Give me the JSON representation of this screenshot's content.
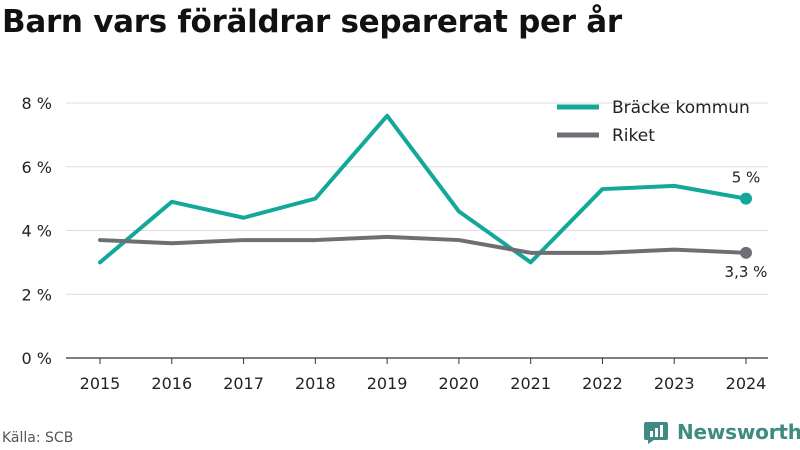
{
  "title": "Barn vars föräldrar separerat per år",
  "source": "Källa: SCB",
  "brand": "Newsworthy",
  "colors": {
    "Bräcke kommun": "#13a89a",
    "Riket": "#6e6e74",
    "grid": "#dddddd",
    "axis": "#333333",
    "brand": "#3f8a83"
  },
  "chart_data": {
    "type": "line",
    "title": "Barn vars föräldrar separerat per år",
    "xlabel": "",
    "ylabel": "",
    "x": [
      "2015",
      "2016",
      "2017",
      "2018",
      "2019",
      "2020",
      "2021",
      "2022",
      "2023",
      "2024"
    ],
    "ylim": [
      0,
      8
    ],
    "y_ticks": [
      0,
      2,
      4,
      6,
      8
    ],
    "y_tick_labels": [
      "0 %",
      "2 %",
      "4 %",
      "6 %",
      "8 %"
    ],
    "grid": true,
    "legend_position": "top-right",
    "series": [
      {
        "name": "Bräcke kommun",
        "values": [
          3.0,
          4.9,
          4.4,
          5.0,
          7.6,
          4.6,
          3.0,
          5.3,
          5.4,
          5.0
        ],
        "end_label": "5 %"
      },
      {
        "name": "Riket",
        "values": [
          3.7,
          3.6,
          3.7,
          3.7,
          3.8,
          3.7,
          3.3,
          3.3,
          3.4,
          3.3
        ],
        "end_label": "3,3 %"
      }
    ]
  }
}
